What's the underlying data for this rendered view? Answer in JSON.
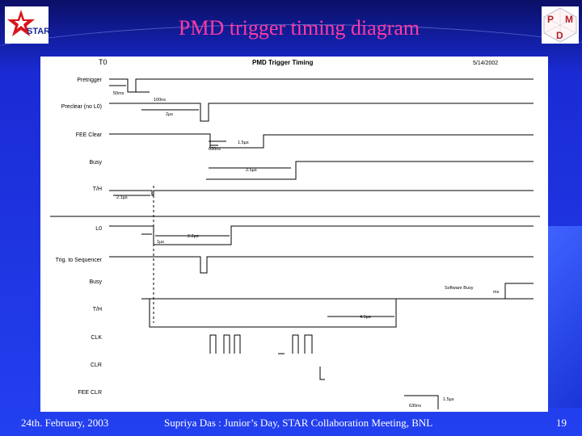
{
  "slide": {
    "title": "PMD trigger timing diagram",
    "footer_left": "24th. February, 2003",
    "footer_center": "Supriya Das : Junior’s Day, STAR Collaboration Meeting, BNL",
    "page_number": "19",
    "logo_left_text": "STAR",
    "logo_right_letters": [
      "P",
      "M",
      "D"
    ]
  },
  "diagram": {
    "header_left": "T0",
    "header_title": "PMD Trigger Timing",
    "header_date": "5/14/2002",
    "signals": [
      "Pretrigger",
      "Preclear (no L0)",
      "FEE Clear",
      "Busy",
      "T/H",
      "L0",
      "Trig. to Sequencer",
      "Busy",
      "T/H",
      "CLK",
      "CLR",
      "FEE CLR"
    ],
    "annotations": [
      "50ms",
      "100ns",
      "2µs",
      "1.5µs",
      "630ns",
      "2.5µs",
      "2.1µs",
      "1µs",
      "2.2µs",
      "Software Busy",
      "ms",
      "4.5µs",
      "1.5µs",
      "630ns"
    ],
    "colors": {
      "trace": "#000000",
      "background": "#ffffff"
    }
  }
}
